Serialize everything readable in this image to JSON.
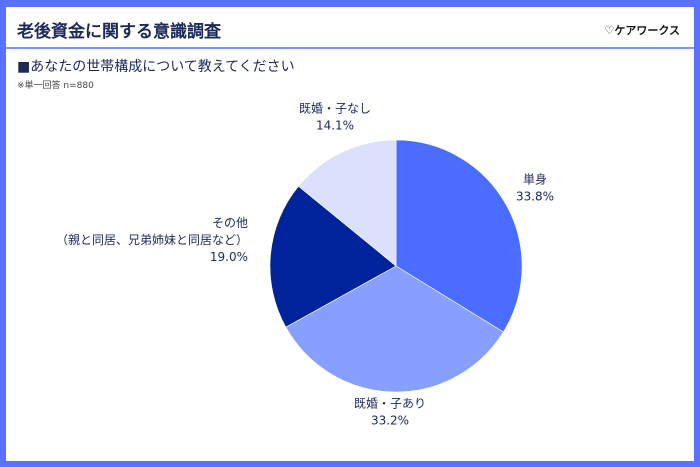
{
  "header": {
    "title": "老後資金に関する意識調査",
    "logo": "♡ケアワークス"
  },
  "question": "■あなたの世帯構成について教えてください",
  "note": "※単一回答 n=880",
  "chart_data": {
    "type": "pie",
    "categories": [
      "単身",
      "既婚・子あり",
      "その他（親と同居、兄弟姉妹と同居など）",
      "既婚・子なし"
    ],
    "values": [
      33.8,
      33.2,
      19.0,
      14.1
    ],
    "unit": "%",
    "colors": [
      "#4a6cff",
      "#87a0ff",
      "#00229a",
      "#dbe1fd"
    ],
    "labels": [
      {
        "lines": [
          "単身"
        ],
        "value": "33.8%"
      },
      {
        "lines": [
          "既婚・子あり"
        ],
        "value": "33.2%"
      },
      {
        "lines": [
          "その他",
          "（親と同居、兄弟姉妹と同居など）"
        ],
        "value": "19.0%"
      },
      {
        "lines": [
          "既婚・子なし"
        ],
        "value": "14.1%"
      }
    ],
    "start": "12 o'clock",
    "direction": "clockwise"
  }
}
